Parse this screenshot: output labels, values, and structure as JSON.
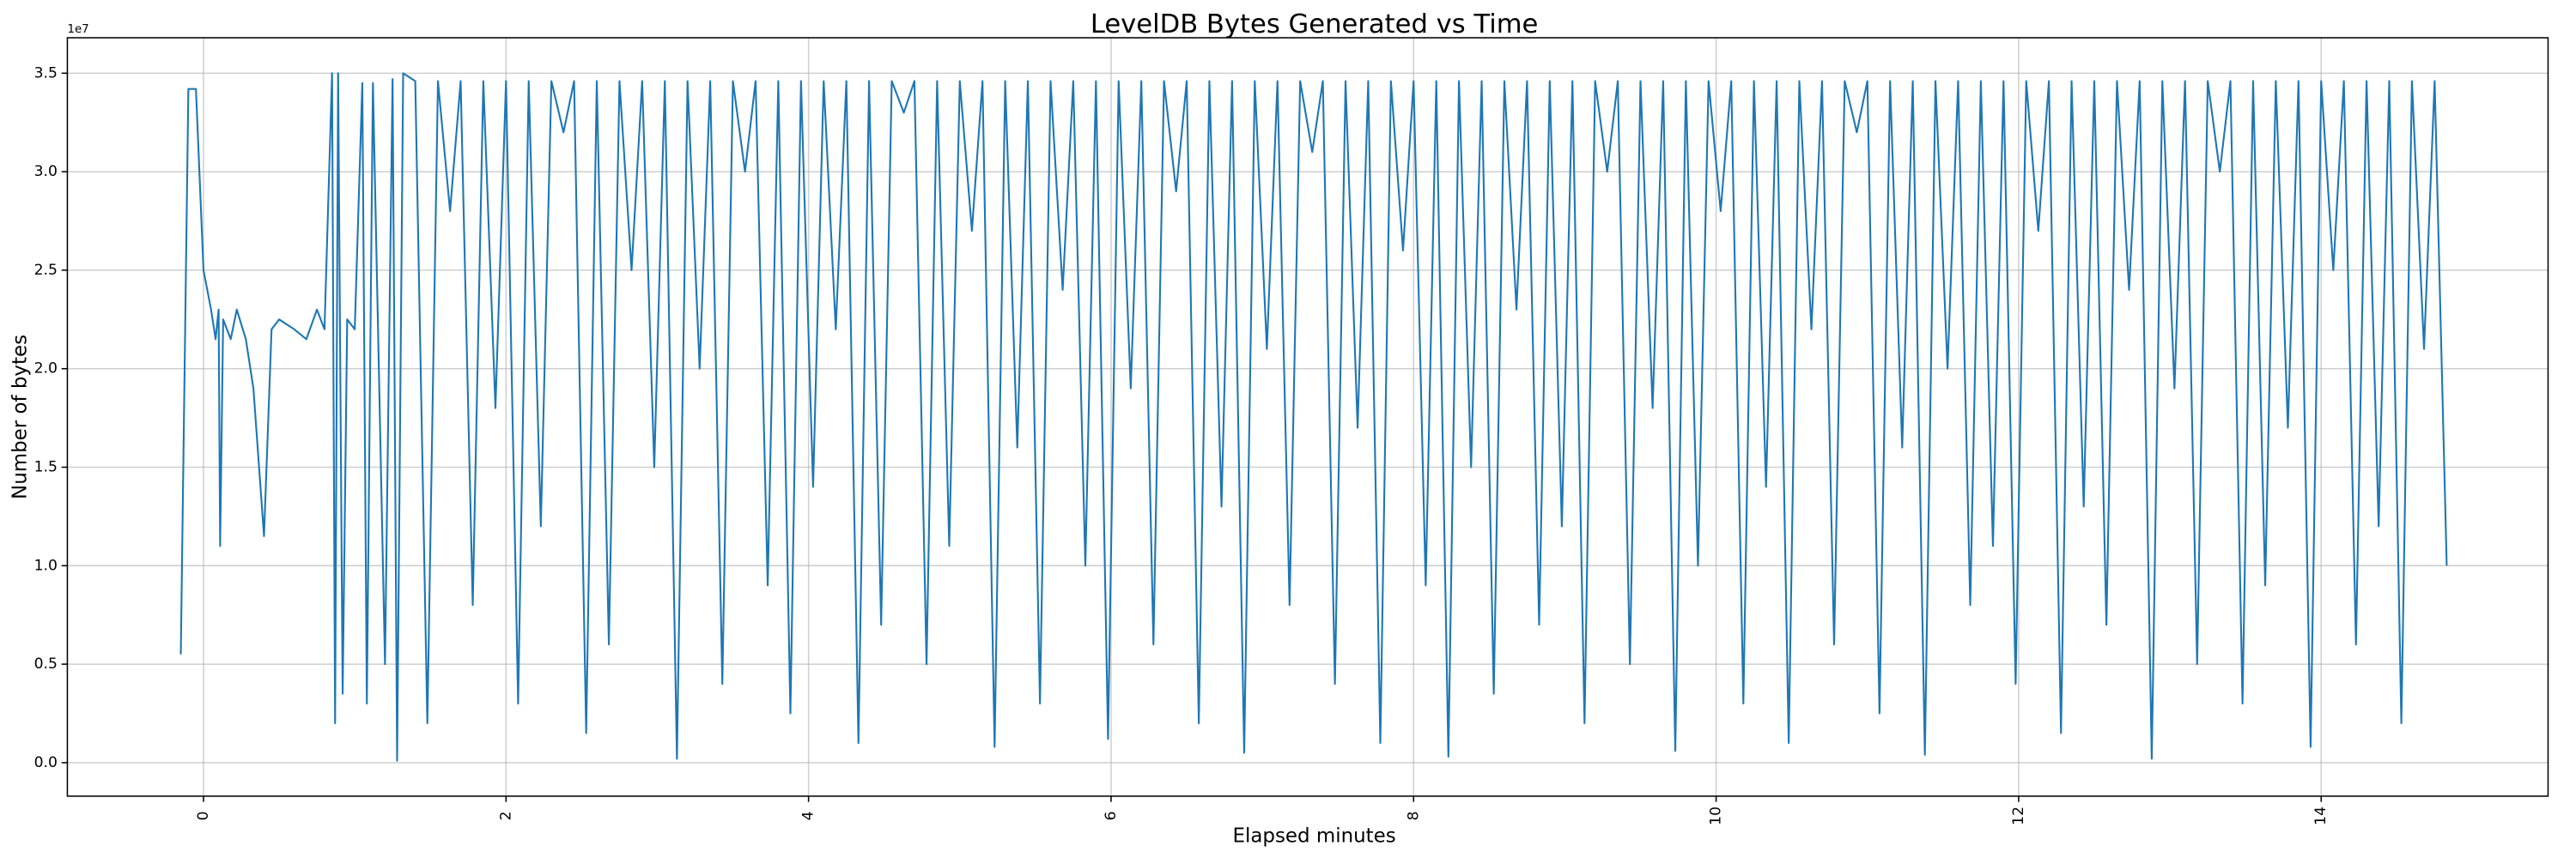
{
  "chart_data": {
    "type": "line",
    "title": "LevelDB Bytes Generated vs Time",
    "xlabel": "Elapsed minutes",
    "ylabel": "Number of bytes",
    "y_offset_label": "1e7",
    "color": "#1f77b4",
    "grid": true,
    "xlim": [
      -0.9,
      15.5
    ],
    "ylim": [
      -1700000,
      36800000
    ],
    "xticks": [
      0,
      2,
      4,
      6,
      8,
      10,
      12,
      14
    ],
    "yticks": [
      {
        "value": 0,
        "label": "0.0"
      },
      {
        "value": 5000000,
        "label": "0.5"
      },
      {
        "value": 10000000,
        "label": "1.0"
      },
      {
        "value": 15000000,
        "label": "1.5"
      },
      {
        "value": 20000000,
        "label": "2.0"
      },
      {
        "value": 25000000,
        "label": "2.5"
      },
      {
        "value": 30000000,
        "label": "3.0"
      },
      {
        "value": 35000000,
        "label": "3.5"
      }
    ],
    "x": [
      -0.15,
      -0.1,
      -0.05,
      0,
      0.05,
      0.08,
      0.1,
      0.11,
      0.13,
      0.18,
      0.22,
      0.28,
      0.33,
      0.4,
      0.45,
      0.5,
      0.6,
      0.68,
      0.75,
      0.8,
      0.85,
      0.87,
      0.89,
      0.92,
      0.95,
      1,
      1.05,
      1.08,
      1.12,
      1.2,
      1.25,
      1.28,
      1.32,
      1.4,
      1.48,
      1.55,
      1.63,
      1.7,
      1.78,
      1.85,
      1.93,
      2,
      2.08,
      2.15,
      2.23,
      2.3,
      2.38,
      2.45,
      2.53,
      2.6,
      2.68,
      2.75,
      2.83,
      2.9,
      2.98,
      3.05,
      3.13,
      3.2,
      3.28,
      3.35,
      3.43,
      3.5,
      3.58,
      3.65,
      3.73,
      3.8,
      3.88,
      3.95,
      4.03,
      4.1,
      4.18,
      4.25,
      4.33,
      4.4,
      4.48,
      4.55,
      4.63,
      4.7,
      4.78,
      4.85,
      4.93,
      5,
      5.08,
      5.15,
      5.23,
      5.3,
      5.38,
      5.45,
      5.53,
      5.6,
      5.68,
      5.75,
      5.83,
      5.9,
      5.98,
      6.05,
      6.13,
      6.2,
      6.28,
      6.35,
      6.43,
      6.5,
      6.58,
      6.65,
      6.73,
      6.8,
      6.88,
      6.95,
      7.03,
      7.1,
      7.18,
      7.25,
      7.33,
      7.4,
      7.48,
      7.55,
      7.63,
      7.7,
      7.78,
      7.85,
      7.93,
      8,
      8.08,
      8.15,
      8.23,
      8.3,
      8.38,
      8.45,
      8.53,
      8.6,
      8.68,
      8.75,
      8.83,
      8.9,
      8.98,
      9.05,
      9.13,
      9.2,
      9.28,
      9.35,
      9.43,
      9.5,
      9.58,
      9.65,
      9.73,
      9.8,
      9.88,
      9.95,
      10.03,
      10.1,
      10.18,
      10.25,
      10.33,
      10.4,
      10.48,
      10.55,
      10.63,
      10.7,
      10.78,
      10.85,
      10.93,
      11,
      11.08,
      11.15,
      11.23,
      11.3,
      11.38,
      11.45,
      11.53,
      11.6,
      11.68,
      11.75,
      11.83,
      11.9,
      11.98,
      12.05,
      12.13,
      12.2,
      12.28,
      12.35,
      12.43,
      12.5,
      12.58,
      12.65,
      12.73,
      12.8,
      12.88,
      12.95,
      13.03,
      13.1,
      13.18,
      13.25,
      13.33,
      13.4,
      13.48,
      13.55,
      13.63,
      13.7,
      13.78,
      13.85,
      13.93,
      14,
      14.08,
      14.15,
      14.23,
      14.3,
      14.38,
      14.45,
      14.53,
      14.6,
      14.68,
      14.75,
      14.83
    ],
    "values": [
      5500000,
      34200000,
      34200000,
      25000000,
      23000000,
      21500000,
      23000000,
      11000000,
      22500000,
      21500000,
      23000000,
      21500000,
      19000000,
      11500000,
      22000000,
      22500000,
      22000000,
      21500000,
      23000000,
      22000000,
      35000000,
      2000000,
      35000000,
      3500000,
      22500000,
      22000000,
      34500000,
      3000000,
      34500000,
      5000000,
      34700000,
      100000,
      35000000,
      34600000,
      2000000,
      34600000,
      28000000,
      34600000,
      8000000,
      34600000,
      18000000,
      34600000,
      3000000,
      34600000,
      12000000,
      34600000,
      32000000,
      34600000,
      1500000,
      34600000,
      6000000,
      34600000,
      25000000,
      34600000,
      15000000,
      34600000,
      200000,
      34600000,
      20000000,
      34600000,
      4000000,
      34600000,
      30000000,
      34600000,
      9000000,
      34600000,
      2500000,
      34600000,
      14000000,
      34600000,
      22000000,
      34600000,
      1000000,
      34600000,
      7000000,
      34600000,
      33000000,
      34600000,
      5000000,
      34600000,
      11000000,
      34600000,
      27000000,
      34600000,
      800000,
      34600000,
      16000000,
      34600000,
      3000000,
      34600000,
      24000000,
      34600000,
      10000000,
      34600000,
      1200000,
      34600000,
      19000000,
      34600000,
      6000000,
      34600000,
      29000000,
      34600000,
      2000000,
      34600000,
      13000000,
      34600000,
      500000,
      34600000,
      21000000,
      34600000,
      8000000,
      34600000,
      31000000,
      34600000,
      4000000,
      34600000,
      17000000,
      34600000,
      1000000,
      34600000,
      26000000,
      34600000,
      9000000,
      34600000,
      300000,
      34600000,
      15000000,
      34600000,
      3500000,
      34600000,
      23000000,
      34600000,
      7000000,
      34600000,
      12000000,
      34600000,
      2000000,
      34600000,
      30000000,
      34600000,
      5000000,
      34600000,
      18000000,
      34600000,
      600000,
      34600000,
      10000000,
      34600000,
      28000000,
      34600000,
      3000000,
      34600000,
      14000000,
      34600000,
      1000000,
      34600000,
      22000000,
      34600000,
      6000000,
      34600000,
      32000000,
      34600000,
      2500000,
      34600000,
      16000000,
      34600000,
      400000,
      34600000,
      20000000,
      34600000,
      8000000,
      34600000,
      11000000,
      34600000,
      4000000,
      34600000,
      27000000,
      34600000,
      1500000,
      34600000,
      13000000,
      34600000,
      7000000,
      34600000,
      24000000,
      34600000,
      200000,
      34600000,
      19000000,
      34600000,
      5000000,
      34600000,
      30000000,
      34600000,
      3000000,
      34600000,
      9000000,
      34600000,
      17000000,
      34600000,
      800000,
      34600000,
      25000000,
      34600000,
      6000000,
      34600000,
      12000000,
      34600000,
      2000000,
      34600000,
      21000000,
      34600000,
      10000000
    ]
  }
}
